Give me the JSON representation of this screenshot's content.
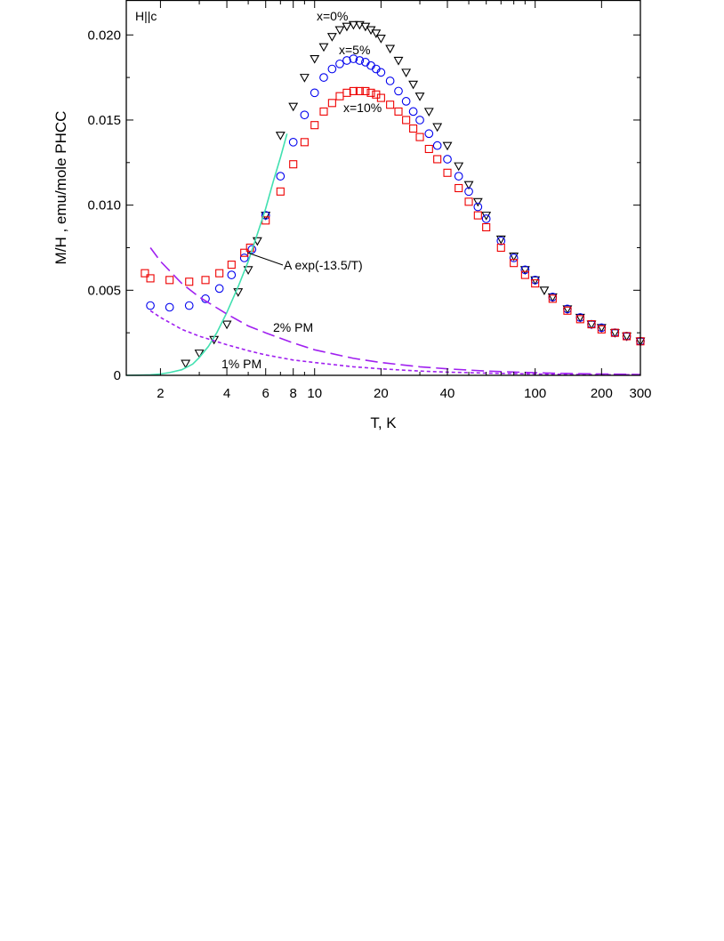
{
  "chart_data": {
    "type": "scatter",
    "title": "",
    "xlabel": "T, K",
    "ylabel": "M/H , emu/mole PHCC",
    "xscale": "log",
    "xlim": [
      1.4,
      300
    ],
    "ylim": [
      0,
      0.022
    ],
    "grid": false,
    "xticks": [
      2,
      4,
      6,
      8,
      10,
      20,
      40,
      100,
      200,
      300
    ],
    "xtick_labels": [
      "2",
      "4",
      "6",
      "8",
      "10",
      "20",
      "40",
      "100",
      "200",
      "300"
    ],
    "yticks": [
      0,
      0.005,
      0.01,
      0.015,
      0.02
    ],
    "ytick_labels": [
      "0",
      "0.005",
      "0.010",
      "0.015",
      "0.020"
    ],
    "field_label": "H||c",
    "series": [
      {
        "name": "x=0%",
        "marker": "triangle-down",
        "color": "#000000",
        "x": [
          2.6,
          3.0,
          3.5,
          4.0,
          4.5,
          5.0,
          5.5,
          6.0,
          7.0,
          8.0,
          9.0,
          10.0,
          11,
          12,
          13,
          14,
          15,
          16,
          17,
          18,
          19,
          20,
          22,
          24,
          26,
          28,
          30,
          33,
          36,
          40,
          45,
          50,
          55,
          60,
          70,
          80,
          90,
          100,
          110,
          120,
          140,
          160,
          180,
          200,
          230,
          260,
          300
        ],
        "y": [
          0.0007,
          0.0013,
          0.0021,
          0.003,
          0.0049,
          0.0062,
          0.0079,
          0.0094,
          0.0141,
          0.0158,
          0.0175,
          0.0186,
          0.0193,
          0.0199,
          0.0203,
          0.0205,
          0.0206,
          0.0206,
          0.0205,
          0.0203,
          0.0201,
          0.0198,
          0.0192,
          0.0185,
          0.0178,
          0.0171,
          0.0164,
          0.0155,
          0.0146,
          0.0135,
          0.0123,
          0.0112,
          0.0102,
          0.0094,
          0.008,
          0.007,
          0.0062,
          0.0056,
          0.005,
          0.0046,
          0.0039,
          0.0034,
          0.003,
          0.0028,
          0.0025,
          0.0023,
          0.002
        ]
      },
      {
        "name": "x=5%",
        "marker": "circle",
        "color": "#0000ee",
        "x": [
          1.8,
          2.2,
          2.7,
          3.2,
          3.7,
          4.2,
          4.8,
          5.2,
          6.0,
          7.0,
          8.0,
          9.0,
          10.0,
          11,
          12,
          13,
          14,
          15,
          16,
          17,
          18,
          19,
          20,
          22,
          24,
          26,
          28,
          30,
          33,
          36,
          40,
          45,
          50,
          55,
          60,
          70,
          80,
          90,
          100,
          120,
          140,
          160,
          180,
          200,
          230,
          260,
          300
        ],
        "y": [
          0.0041,
          0.004,
          0.0041,
          0.0045,
          0.0051,
          0.0059,
          0.0069,
          0.0074,
          0.0094,
          0.0117,
          0.0137,
          0.0153,
          0.0166,
          0.0175,
          0.018,
          0.0183,
          0.0185,
          0.0186,
          0.0185,
          0.0184,
          0.0182,
          0.018,
          0.0178,
          0.0173,
          0.0167,
          0.0161,
          0.0155,
          0.015,
          0.0142,
          0.0135,
          0.0127,
          0.0117,
          0.0108,
          0.0099,
          0.0092,
          0.0079,
          0.0069,
          0.0062,
          0.0056,
          0.0046,
          0.0039,
          0.0034,
          0.003,
          0.0028,
          0.0025,
          0.0023,
          0.002
        ]
      },
      {
        "name": "x=10%",
        "marker": "square",
        "color": "#ee0000",
        "x": [
          1.7,
          1.8,
          2.2,
          2.7,
          3.2,
          3.7,
          4.2,
          4.8,
          5.1,
          6.0,
          7.0,
          8.0,
          9.0,
          10.0,
          11,
          12,
          13,
          14,
          15,
          16,
          17,
          18,
          19,
          20,
          22,
          24,
          26,
          28,
          30,
          33,
          36,
          40,
          45,
          50,
          55,
          60,
          70,
          80,
          90,
          100,
          120,
          140,
          160,
          180,
          200,
          230,
          260,
          300
        ],
        "y": [
          0.006,
          0.0057,
          0.0056,
          0.0055,
          0.0056,
          0.006,
          0.0065,
          0.0072,
          0.0075,
          0.0091,
          0.0108,
          0.0124,
          0.0137,
          0.0147,
          0.0155,
          0.016,
          0.0164,
          0.0166,
          0.0167,
          0.0167,
          0.0167,
          0.0166,
          0.0165,
          0.0163,
          0.0159,
          0.0155,
          0.015,
          0.0145,
          0.014,
          0.0133,
          0.0127,
          0.0119,
          0.011,
          0.0102,
          0.0094,
          0.0087,
          0.0075,
          0.0066,
          0.0059,
          0.0054,
          0.0045,
          0.0038,
          0.0033,
          0.003,
          0.0027,
          0.0025,
          0.0023,
          0.002
        ]
      }
    ],
    "curves": [
      {
        "name": "A exp(-13.5/T)",
        "style": "solid",
        "color": "#40e0b0",
        "x": [
          1.4,
          1.6,
          1.8,
          2.0,
          2.2,
          2.5,
          2.8,
          3.0,
          3.3,
          3.6,
          4.0,
          4.5,
          5.0,
          5.5,
          6.0,
          6.5,
          7.0,
          7.5
        ],
        "y": [
          0.0,
          1e-05,
          3e-05,
          8e-05,
          0.00016,
          0.00033,
          0.00066,
          0.00105,
          0.0017,
          0.0025,
          0.0037,
          0.0052,
          0.0067,
          0.0083,
          0.0098,
          0.0114,
          0.0128,
          0.0142
        ]
      },
      {
        "name": "2% PM",
        "style": "long-dash",
        "color": "#a020f0",
        "x": [
          1.8,
          2.0,
          2.5,
          3.0,
          4.0,
          5.0,
          6.0,
          8.0,
          10,
          15,
          20,
          30,
          40,
          60,
          100,
          150,
          200,
          300
        ],
        "y": [
          0.0075,
          0.0067,
          0.0054,
          0.0046,
          0.0036,
          0.0029,
          0.0025,
          0.0019,
          0.0015,
          0.001,
          0.00075,
          0.0005,
          0.00038,
          0.00025,
          0.00015,
          0.0001,
          8e-05,
          5e-05
        ]
      },
      {
        "name": "1% PM",
        "style": "short-dash",
        "color": "#a020f0",
        "x": [
          1.8,
          2.0,
          2.5,
          3.0,
          4.0,
          5.0,
          6.0,
          8.0,
          10,
          15,
          20,
          30,
          40,
          60,
          100,
          150,
          200,
          300
        ],
        "y": [
          0.0038,
          0.0034,
          0.0027,
          0.0023,
          0.0018,
          0.00145,
          0.0012,
          0.0009,
          0.00075,
          0.0005,
          0.00038,
          0.00025,
          0.00019,
          0.00013,
          8e-05,
          5e-05,
          4e-05,
          3e-05
        ]
      }
    ],
    "annotations": [
      {
        "text": "x=0%",
        "series": "x=0%"
      },
      {
        "text": "x=5%",
        "series": "x=5%"
      },
      {
        "text": "x=10%",
        "series": "x=10%"
      },
      {
        "text": "A exp(-13.5/T)",
        "curve": "A exp(-13.5/T)"
      },
      {
        "text": "2% PM",
        "curve": "2% PM"
      },
      {
        "text": "1% PM",
        "curve": "1% PM"
      }
    ]
  }
}
